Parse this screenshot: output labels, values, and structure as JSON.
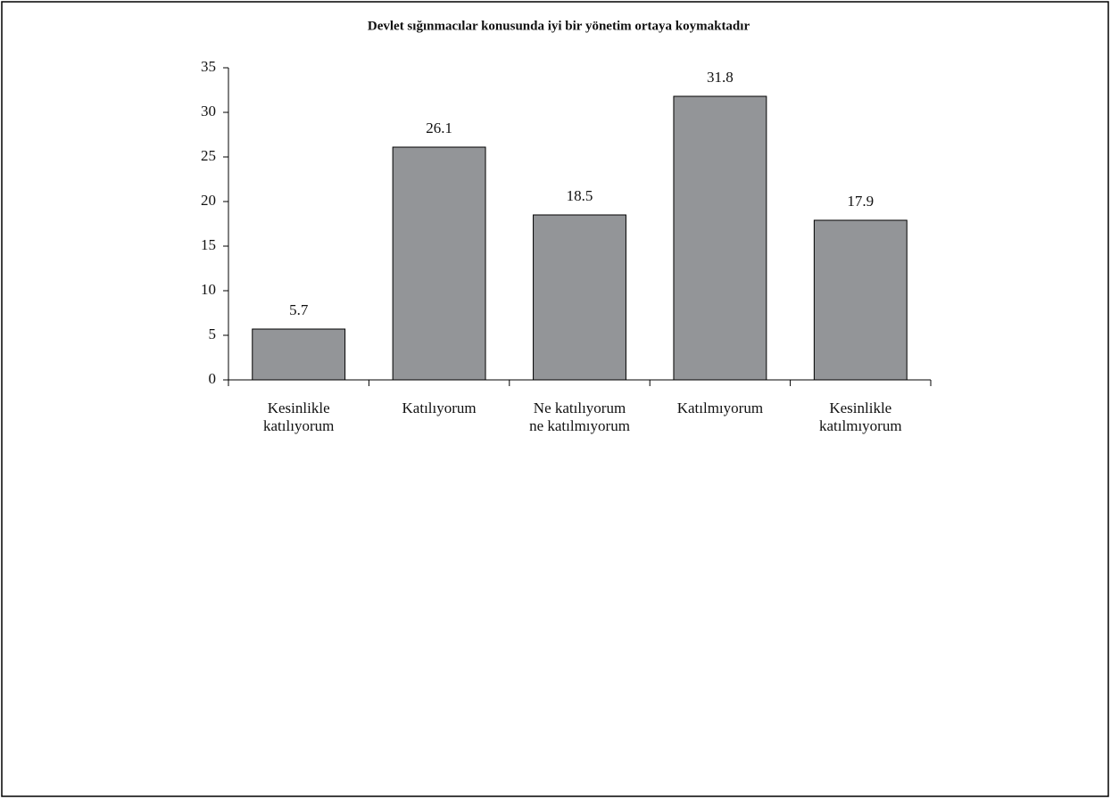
{
  "chart_data": {
    "type": "bar",
    "title": "Devlet sığınmacılar konusunda iyi bir yönetim ortaya koymaktadır",
    "categories": [
      "Kesinlikle katılıyorum",
      "Katılıyorum",
      "Ne katılıyorum ne katılmıyorum",
      "Katılmıyorum",
      "Kesinlikle katılmıyorum"
    ],
    "values": [
      5.7,
      26.1,
      18.5,
      31.8,
      17.9
    ],
    "color": "#939598",
    "ylim": [
      0,
      35
    ],
    "yticks": [
      0,
      5,
      10,
      15,
      20,
      25,
      30,
      35
    ],
    "grid": false
  }
}
